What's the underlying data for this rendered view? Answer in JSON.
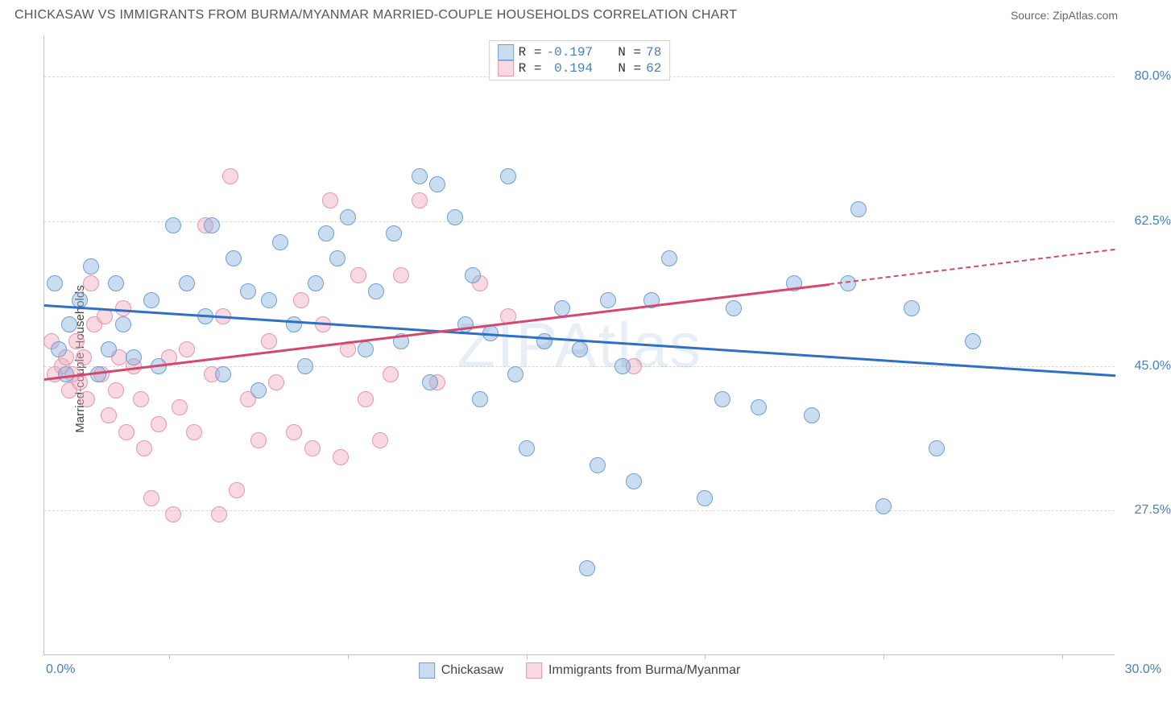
{
  "header": {
    "title": "CHICKASAW VS IMMIGRANTS FROM BURMA/MYANMAR MARRIED-COUPLE HOUSEHOLDS CORRELATION CHART",
    "source": "Source: ZipAtlas.com"
  },
  "watermark": "ZIPAtlas",
  "chart": {
    "type": "scatter",
    "ylabel": "Married-couple Households",
    "xlim": [
      0,
      30
    ],
    "ylim": [
      10,
      85
    ],
    "xticks": [
      0,
      30
    ],
    "xtick_marks": [
      3.5,
      8.5,
      13.5,
      18.5,
      23.5,
      28.5
    ],
    "yticks": [
      27.5,
      45.0,
      62.5,
      80.0
    ],
    "grid_color": "#d9d9d9",
    "background_color": "#ffffff",
    "point_radius": 10,
    "axis_color": "#bfbfbf",
    "tick_label_color": "#4a7ebb",
    "label_fontsize": 15,
    "tick_fontsize": 16
  },
  "series": {
    "chickasaw": {
      "label": "Chickasaw",
      "fill": "rgba(137,177,222,0.45)",
      "stroke": "#6f9fd8",
      "line_color": "#2f6fc4",
      "R": "-0.197",
      "N": "78",
      "trend": {
        "x1": 0,
        "y1": 52.5,
        "x2": 30,
        "y2": 44.0,
        "dash": false
      },
      "points": [
        [
          0.3,
          55
        ],
        [
          0.4,
          47
        ],
        [
          0.6,
          44
        ],
        [
          0.7,
          50
        ],
        [
          1.0,
          53
        ],
        [
          1.3,
          57
        ],
        [
          1.5,
          44
        ],
        [
          1.8,
          47
        ],
        [
          2.0,
          55
        ],
        [
          2.2,
          50
        ],
        [
          2.5,
          46
        ],
        [
          3.0,
          53
        ],
        [
          3.2,
          45
        ],
        [
          3.6,
          62
        ],
        [
          4.0,
          55
        ],
        [
          4.5,
          51
        ],
        [
          4.7,
          62
        ],
        [
          5.0,
          44
        ],
        [
          5.3,
          58
        ],
        [
          5.7,
          54
        ],
        [
          6.0,
          42
        ],
        [
          6.3,
          53
        ],
        [
          6.6,
          60
        ],
        [
          7.0,
          50
        ],
        [
          7.3,
          45
        ],
        [
          7.6,
          55
        ],
        [
          7.9,
          61
        ],
        [
          8.2,
          58
        ],
        [
          8.5,
          63
        ],
        [
          9.0,
          47
        ],
        [
          9.3,
          54
        ],
        [
          9.8,
          61
        ],
        [
          10.0,
          48
        ],
        [
          10.5,
          68
        ],
        [
          10.8,
          43
        ],
        [
          11.0,
          67
        ],
        [
          11.5,
          63
        ],
        [
          11.8,
          50
        ],
        [
          12.0,
          56
        ],
        [
          12.2,
          41
        ],
        [
          12.5,
          49
        ],
        [
          13.0,
          68
        ],
        [
          13.2,
          44
        ],
        [
          13.5,
          35
        ],
        [
          14.0,
          48
        ],
        [
          14.5,
          52
        ],
        [
          15.0,
          47
        ],
        [
          15.2,
          20.5
        ],
        [
          15.5,
          33
        ],
        [
          15.8,
          53
        ],
        [
          16.2,
          45
        ],
        [
          16.5,
          31
        ],
        [
          17.0,
          53
        ],
        [
          17.5,
          58
        ],
        [
          18.5,
          29
        ],
        [
          19.0,
          41
        ],
        [
          19.3,
          52
        ],
        [
          20.0,
          40
        ],
        [
          21.0,
          55
        ],
        [
          21.5,
          39
        ],
        [
          22.5,
          55
        ],
        [
          22.8,
          64
        ],
        [
          23.5,
          28
        ],
        [
          24.3,
          52
        ],
        [
          25.0,
          35
        ],
        [
          26.0,
          48
        ]
      ]
    },
    "immigrants": {
      "label": "Immigrants from Burma/Myanmar",
      "fill": "rgba(242,170,188,0.45)",
      "stroke": "#e496ab",
      "line_color": "#d6476d",
      "R": "0.194",
      "N": "62",
      "trend": {
        "x1": 0,
        "y1": 43.5,
        "x2": 22,
        "y2": 55.0,
        "dash": false
      },
      "trend_ext": {
        "x1": 22,
        "y1": 55.0,
        "x2": 30,
        "y2": 59.2,
        "dash": true
      },
      "points": [
        [
          0.2,
          48
        ],
        [
          0.3,
          44
        ],
        [
          0.5,
          45
        ],
        [
          0.6,
          46
        ],
        [
          0.7,
          42
        ],
        [
          0.8,
          44
        ],
        [
          0.9,
          48
        ],
        [
          1.0,
          43
        ],
        [
          1.1,
          46
        ],
        [
          1.2,
          41
        ],
        [
          1.3,
          55
        ],
        [
          1.4,
          50
        ],
        [
          1.6,
          44
        ],
        [
          1.7,
          51
        ],
        [
          1.8,
          39
        ],
        [
          2.0,
          42
        ],
        [
          2.1,
          46
        ],
        [
          2.2,
          52
        ],
        [
          2.3,
          37
        ],
        [
          2.5,
          45
        ],
        [
          2.7,
          41
        ],
        [
          2.8,
          35
        ],
        [
          3.0,
          29
        ],
        [
          3.2,
          38
        ],
        [
          3.5,
          46
        ],
        [
          3.6,
          27
        ],
        [
          3.8,
          40
        ],
        [
          4.0,
          47
        ],
        [
          4.2,
          37
        ],
        [
          4.5,
          62
        ],
        [
          4.7,
          44
        ],
        [
          4.9,
          27
        ],
        [
          5.0,
          51
        ],
        [
          5.2,
          68
        ],
        [
          5.4,
          30
        ],
        [
          5.7,
          41
        ],
        [
          6.0,
          36
        ],
        [
          6.3,
          48
        ],
        [
          6.5,
          43
        ],
        [
          7.0,
          37
        ],
        [
          7.2,
          53
        ],
        [
          7.5,
          35
        ],
        [
          7.8,
          50
        ],
        [
          8.0,
          65
        ],
        [
          8.3,
          34
        ],
        [
          8.5,
          47
        ],
        [
          8.8,
          56
        ],
        [
          9.0,
          41
        ],
        [
          9.4,
          36
        ],
        [
          9.7,
          44
        ],
        [
          10.0,
          56
        ],
        [
          10.5,
          65
        ],
        [
          11.0,
          43
        ],
        [
          12.2,
          55
        ],
        [
          13.0,
          51
        ],
        [
          16.5,
          45
        ]
      ]
    }
  },
  "legend_top": {
    "R_label": "R =",
    "N_label": "N ="
  }
}
